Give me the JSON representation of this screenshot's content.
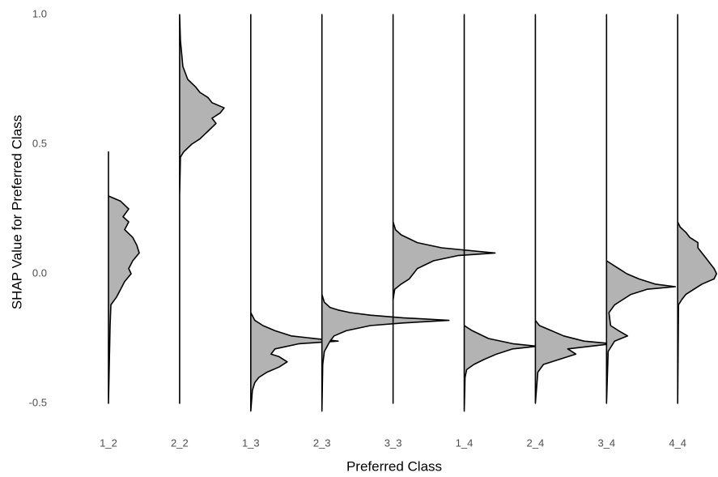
{
  "chart_data": {
    "type": "half-violin",
    "x_label": "Preferred Class",
    "y_label": "SHAP Value for Preferred Class",
    "ylim": [
      -0.53,
      1.0
    ],
    "yticks": [
      {
        "value": -0.5,
        "label": "-0.5"
      },
      {
        "value": 0,
        "label": "0.0"
      },
      {
        "value": 0.5,
        "label": "0.5"
      },
      {
        "value": 1.0,
        "label": "1.0"
      }
    ],
    "fill_color": "#b3b3b3",
    "line_color": "#000000",
    "series": [
      {
        "name": "1_2",
        "y": [
          0.47,
          0.3,
          0.28,
          0.25,
          0.22,
          0.2,
          0.17,
          0.14,
          0.11,
          0.08,
          0.05,
          0.02,
          0,
          -0.03,
          -0.06,
          -0.09,
          -0.12,
          -0.2,
          -0.35,
          -0.5
        ],
        "density": [
          0,
          0,
          1.5,
          2.5,
          1.8,
          2.5,
          2,
          3,
          3.5,
          3.8,
          3,
          2.5,
          2.8,
          2,
          1.5,
          1,
          0.3,
          0.2,
          0.1,
          0
        ]
      },
      {
        "name": "2_2",
        "y": [
          1.0,
          0.9,
          0.8,
          0.75,
          0.72,
          0.7,
          0.68,
          0.66,
          0.64,
          0.62,
          0.6,
          0.58,
          0.55,
          0.52,
          0.5,
          0.47,
          0.45,
          0.3,
          -0.5
        ],
        "density": [
          0,
          0.1,
          0.4,
          1,
          2,
          2.5,
          3.5,
          4,
          5.5,
          5,
          4,
          4.5,
          3.5,
          2.5,
          1.5,
          0.5,
          0.1,
          0,
          0
        ]
      },
      {
        "name": "1_3",
        "y": [
          1.0,
          -0.15,
          -0.18,
          -0.2,
          -0.22,
          -0.24,
          -0.26,
          -0.27,
          -0.29,
          -0.31,
          -0.32,
          -0.34,
          -0.36,
          -0.38,
          -0.4,
          -0.42,
          -0.45,
          -0.53
        ],
        "density": [
          0,
          0,
          0.5,
          1.5,
          3,
          5,
          10.8,
          6,
          3,
          2.5,
          3.5,
          4.5,
          3.5,
          2,
          1,
          0.5,
          0.2,
          0
        ]
      },
      {
        "name": "2_3",
        "y": [
          1.0,
          -0.08,
          -0.11,
          -0.13,
          -0.14,
          -0.15,
          -0.16,
          -0.17,
          -0.18,
          -0.19,
          -0.2,
          -0.22,
          -0.24,
          -0.26,
          -0.3,
          -0.35,
          -0.53
        ],
        "density": [
          0,
          0,
          0.3,
          1,
          2,
          3.5,
          6,
          10,
          15.7,
          10,
          6,
          3,
          1.5,
          1,
          0.3,
          0.1,
          0
        ]
      },
      {
        "name": "3_3",
        "y": [
          1.0,
          0.2,
          0.17,
          0.15,
          0.12,
          0.1,
          0.08,
          0.07,
          0.05,
          0.02,
          0,
          -0.02,
          -0.04,
          -0.06,
          -0.1,
          -0.5
        ],
        "density": [
          0,
          0,
          0.3,
          1,
          3,
          6,
          12.6,
          8,
          5,
          3,
          2.5,
          2,
          1,
          0.2,
          0,
          0
        ]
      },
      {
        "name": "1_4",
        "y": [
          1.0,
          -0.2,
          -0.22,
          -0.25,
          -0.27,
          -0.28,
          -0.29,
          -0.31,
          -0.33,
          -0.35,
          -0.37,
          -0.4,
          -0.53
        ],
        "density": [
          0,
          0,
          1,
          3,
          6,
          9,
          6,
          4,
          2.5,
          1.2,
          0.3,
          0.1,
          0
        ]
      },
      {
        "name": "2_4",
        "y": [
          1.0,
          -0.18,
          -0.2,
          -0.22,
          -0.24,
          -0.26,
          -0.27,
          -0.29,
          -0.31,
          -0.33,
          -0.35,
          -0.38,
          -0.5
        ],
        "density": [
          0,
          0,
          0.5,
          2,
          3.5,
          6,
          9.5,
          4,
          5,
          3,
          1,
          0.3,
          0
        ]
      },
      {
        "name": "3_4",
        "y": [
          1.0,
          0.05,
          0.03,
          0,
          -0.02,
          -0.04,
          -0.05,
          -0.06,
          -0.08,
          -0.1,
          -0.12,
          -0.15,
          -0.2,
          -0.22,
          -0.24,
          -0.26,
          -0.3,
          -0.5
        ],
        "density": [
          0,
          0,
          1,
          2.5,
          4,
          6,
          8.5,
          5,
          3,
          2,
          1,
          0.3,
          0.5,
          1.5,
          2.6,
          1,
          0.2,
          0
        ]
      },
      {
        "name": "4_4",
        "y": [
          1.0,
          0.2,
          0.18,
          0.16,
          0.14,
          0.12,
          0.1,
          0.08,
          0.06,
          0.04,
          0.02,
          0,
          -0.02,
          -0.04,
          -0.06,
          -0.08,
          -0.1,
          -0.12,
          -0.5
        ],
        "density": [
          0,
          0,
          0.3,
          1,
          1.5,
          2.5,
          2.5,
          3,
          3.5,
          4,
          4.5,
          4.8,
          4.5,
          3,
          2,
          1,
          0.5,
          0.1,
          0
        ]
      }
    ]
  }
}
